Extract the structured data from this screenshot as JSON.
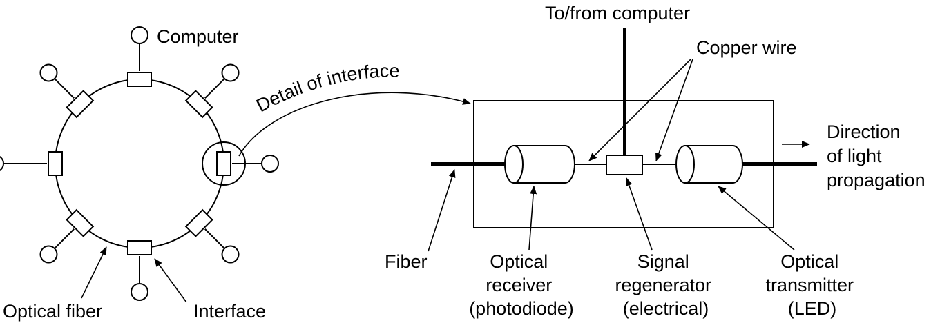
{
  "ring": {
    "computer_label": "Computer",
    "optical_fiber_label": "Optical fiber",
    "interface_label": "Interface",
    "detail_label": "Detail of interface"
  },
  "detail": {
    "to_from_computer": "To/from computer",
    "copper_wire": "Copper wire",
    "direction": [
      "Direction",
      "of light",
      "propagation"
    ],
    "fiber": "Fiber",
    "optical_receiver": [
      "Optical",
      "receiver",
      "(photodiode)"
    ],
    "signal_regenerator": [
      "Signal",
      "regenerator",
      "(electrical)"
    ],
    "optical_transmitter": [
      "Optical",
      "transmitter",
      "(LED)"
    ]
  }
}
